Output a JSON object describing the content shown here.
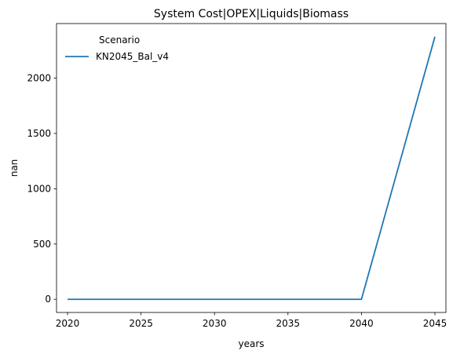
{
  "chart_data": {
    "type": "line",
    "title": "System Cost|OPEX|Liquids|Biomass",
    "xlabel": "years",
    "ylabel": "nan",
    "x": [
      2020,
      2025,
      2030,
      2035,
      2040,
      2045
    ],
    "series": [
      {
        "name": "KN2045_Bal_v4",
        "color": "#1f77b4",
        "values": [
          0,
          0,
          0,
          0,
          0,
          2375
        ]
      }
    ],
    "xticks": [
      2020,
      2025,
      2030,
      2035,
      2040,
      2045
    ],
    "yticks": [
      0,
      500,
      1000,
      1500,
      2000
    ],
    "xlim": [
      2019.25,
      2045.75
    ],
    "ylim": [
      -119,
      2494
    ],
    "grid": false,
    "legend": {
      "title": "Scenario",
      "placement": "top-left"
    }
  }
}
